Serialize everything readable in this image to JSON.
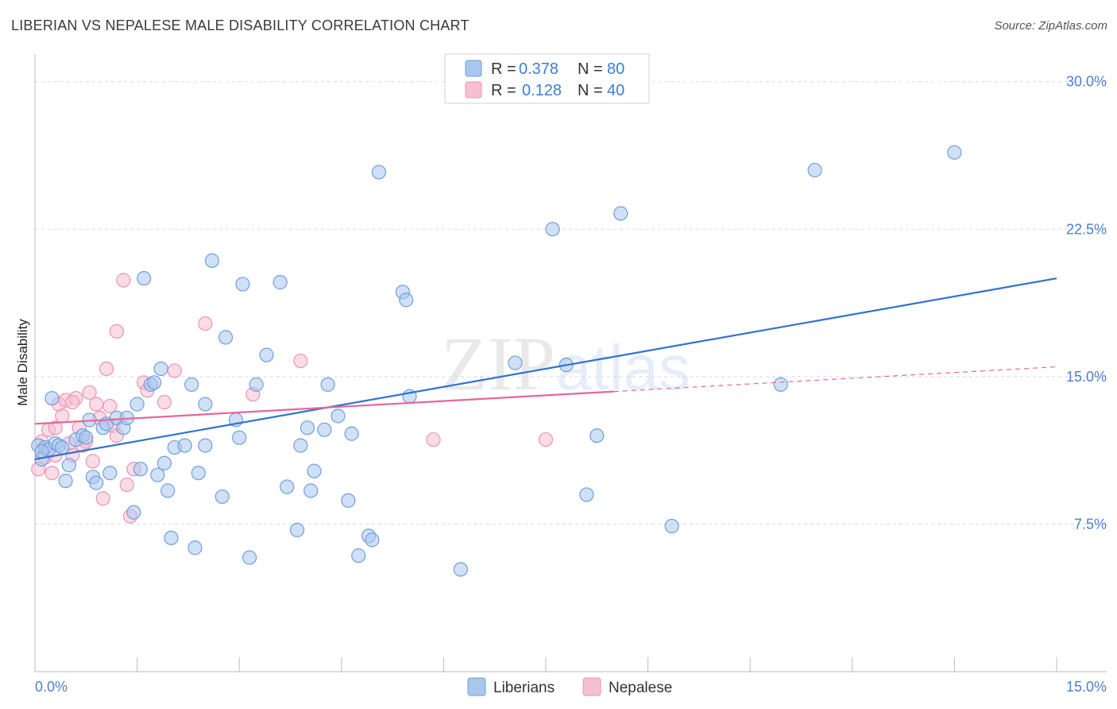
{
  "header": {
    "title": "LIBERIAN VS NEPALESE MALE DISABILITY CORRELATION CHART",
    "source": "Source: ZipAtlas.com"
  },
  "watermark": {
    "zip": "ZIP",
    "atlas": "atlas"
  },
  "colors": {
    "blue_fill": "#a9c6ee",
    "blue_stroke": "#6f9fde",
    "blue_line": "#2f72d1",
    "pink_fill": "#f6bfd2",
    "pink_stroke": "#ec93b3",
    "pink_line": "#e4679a",
    "tick_text": "#4a7fcf",
    "grid": "#d9d9d9"
  },
  "legend": {
    "entries": [
      {
        "r_label": "R =",
        "r_value": "0.378",
        "n_label": "N =",
        "n_value": "80"
      },
      {
        "r_label": "R =",
        "r_value": "0.128",
        "n_label": "N =",
        "n_value": "40"
      }
    ]
  },
  "bottom_legend": [
    "Liberians",
    "Nepalese"
  ],
  "chart_data": {
    "type": "scatter",
    "title": "LIBERIAN VS NEPALESE MALE DISABILITY CORRELATION CHART",
    "xlabel": "",
    "ylabel": "Male Disability",
    "xlim": [
      0,
      15
    ],
    "ylim": [
      0,
      31
    ],
    "x_tick_labels": [
      "0.0%",
      "15.0%"
    ],
    "y_ticks": [
      7.5,
      15.0,
      22.5,
      30.0
    ],
    "y_tick_labels": [
      "7.5%",
      "15.0%",
      "22.5%",
      "30.0%"
    ],
    "series": [
      {
        "name": "Liberians",
        "r": 0.378,
        "n": 80,
        "trend": {
          "x": [
            0.0,
            15.0
          ],
          "y": [
            10.8,
            20.0
          ],
          "dashed_from": null
        },
        "points": [
          [
            0.05,
            11.5
          ],
          [
            0.1,
            10.8
          ],
          [
            0.15,
            11.4
          ],
          [
            0.2,
            11.3
          ],
          [
            0.25,
            13.9
          ],
          [
            0.3,
            11.6
          ],
          [
            0.35,
            11.5
          ],
          [
            0.4,
            11.4
          ],
          [
            0.45,
            9.7
          ],
          [
            0.6,
            11.8
          ],
          [
            0.7,
            12.0
          ],
          [
            0.8,
            12.8
          ],
          [
            0.85,
            9.9
          ],
          [
            0.9,
            9.6
          ],
          [
            1.0,
            12.4
          ],
          [
            1.05,
            12.6
          ],
          [
            1.1,
            10.1
          ],
          [
            1.2,
            12.9
          ],
          [
            1.3,
            12.4
          ],
          [
            1.35,
            12.9
          ],
          [
            1.45,
            8.1
          ],
          [
            1.5,
            13.6
          ],
          [
            1.55,
            10.3
          ],
          [
            1.6,
            20.0
          ],
          [
            1.7,
            14.6
          ],
          [
            1.75,
            14.7
          ],
          [
            1.8,
            10.0
          ],
          [
            1.85,
            15.4
          ],
          [
            1.9,
            10.6
          ],
          [
            1.95,
            9.2
          ],
          [
            2.0,
            6.8
          ],
          [
            2.05,
            11.4
          ],
          [
            2.2,
            11.5
          ],
          [
            2.3,
            14.6
          ],
          [
            2.35,
            6.3
          ],
          [
            2.4,
            10.1
          ],
          [
            2.5,
            11.5
          ],
          [
            2.5,
            13.6
          ],
          [
            2.6,
            20.9
          ],
          [
            2.75,
            8.9
          ],
          [
            2.8,
            17.0
          ],
          [
            2.95,
            12.8
          ],
          [
            3.0,
            11.9
          ],
          [
            3.05,
            19.7
          ],
          [
            3.15,
            5.8
          ],
          [
            3.25,
            14.6
          ],
          [
            3.4,
            16.1
          ],
          [
            3.6,
            19.8
          ],
          [
            3.7,
            9.4
          ],
          [
            3.85,
            7.2
          ],
          [
            3.9,
            11.5
          ],
          [
            4.0,
            12.4
          ],
          [
            4.05,
            9.2
          ],
          [
            4.1,
            10.2
          ],
          [
            4.25,
            12.3
          ],
          [
            4.3,
            14.6
          ],
          [
            4.45,
            13.0
          ],
          [
            4.6,
            8.7
          ],
          [
            4.65,
            12.1
          ],
          [
            4.75,
            5.9
          ],
          [
            4.9,
            6.9
          ],
          [
            4.95,
            6.7
          ],
          [
            5.05,
            25.4
          ],
          [
            5.4,
            19.3
          ],
          [
            5.45,
            18.9
          ],
          [
            5.5,
            14.0
          ],
          [
            6.25,
            5.2
          ],
          [
            7.05,
            15.7
          ],
          [
            7.6,
            22.5
          ],
          [
            7.8,
            15.6
          ],
          [
            8.1,
            9.0
          ],
          [
            8.25,
            12.0
          ],
          [
            8.6,
            23.3
          ],
          [
            9.35,
            7.4
          ],
          [
            10.95,
            14.6
          ],
          [
            11.45,
            25.5
          ],
          [
            13.5,
            26.4
          ],
          [
            0.1,
            11.2
          ],
          [
            0.5,
            10.5
          ],
          [
            0.75,
            11.9
          ]
        ]
      },
      {
        "name": "Nepalese",
        "r": 0.128,
        "n": 40,
        "trend": {
          "x": [
            0.0,
            15.0
          ],
          "y": [
            12.6,
            15.5
          ],
          "dashed_from": 8.5
        },
        "points": [
          [
            0.05,
            10.3
          ],
          [
            0.1,
            11.7
          ],
          [
            0.15,
            10.9
          ],
          [
            0.2,
            12.3
          ],
          [
            0.25,
            10.1
          ],
          [
            0.3,
            12.4
          ],
          [
            0.35,
            13.6
          ],
          [
            0.4,
            13.0
          ],
          [
            0.45,
            13.8
          ],
          [
            0.5,
            11.6
          ],
          [
            0.55,
            11.0
          ],
          [
            0.6,
            13.9
          ],
          [
            0.65,
            12.4
          ],
          [
            0.7,
            11.5
          ],
          [
            0.75,
            11.7
          ],
          [
            0.8,
            14.2
          ],
          [
            0.85,
            10.7
          ],
          [
            0.9,
            13.6
          ],
          [
            0.95,
            12.9
          ],
          [
            1.0,
            8.8
          ],
          [
            1.05,
            15.4
          ],
          [
            1.1,
            13.5
          ],
          [
            1.15,
            12.5
          ],
          [
            1.2,
            17.3
          ],
          [
            1.3,
            19.9
          ],
          [
            1.35,
            9.5
          ],
          [
            1.4,
            7.9
          ],
          [
            1.45,
            10.3
          ],
          [
            1.6,
            14.7
          ],
          [
            1.65,
            14.3
          ],
          [
            1.9,
            13.7
          ],
          [
            2.05,
            15.3
          ],
          [
            2.5,
            17.7
          ],
          [
            3.2,
            14.1
          ],
          [
            3.9,
            15.8
          ],
          [
            5.85,
            11.8
          ],
          [
            7.5,
            11.8
          ],
          [
            0.3,
            11.0
          ],
          [
            0.55,
            13.7
          ],
          [
            1.2,
            12.0
          ]
        ]
      }
    ]
  }
}
